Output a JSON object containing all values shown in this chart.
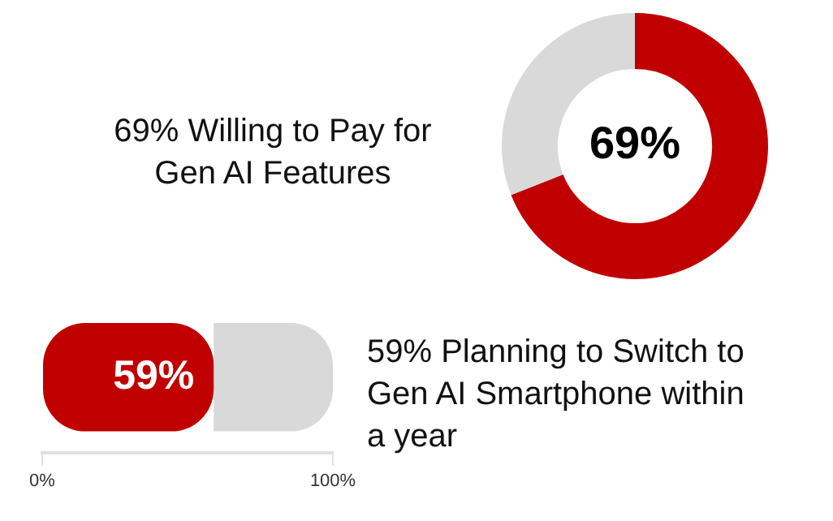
{
  "chart_data": [
    {
      "type": "donut",
      "title": "69% Willing to Pay for Gen AI Features",
      "categories": [
        null,
        null
      ],
      "values": [
        69,
        31
      ],
      "colors": [
        "#c00000",
        "#d9d9d9"
      ],
      "value_labels": [
        "69%",
        null
      ]
    },
    {
      "type": "bar",
      "title": "59% Planning to Switch to Gen AI Smartphone within a year",
      "orientation": "horizontal",
      "stacked": true,
      "categories": [
        null
      ],
      "series": [
        {
          "color": "#c00000",
          "values": [
            59
          ],
          "value_labels": [
            "59%"
          ]
        },
        {
          "color": "#d9d9d9",
          "values": [
            41
          ]
        }
      ],
      "xlim": [
        0,
        100
      ],
      "xticks": [
        {
          "value": 0,
          "label": "0%"
        },
        {
          "value": 100,
          "label": "100%"
        }
      ],
      "tick_labels": "x"
    }
  ]
}
